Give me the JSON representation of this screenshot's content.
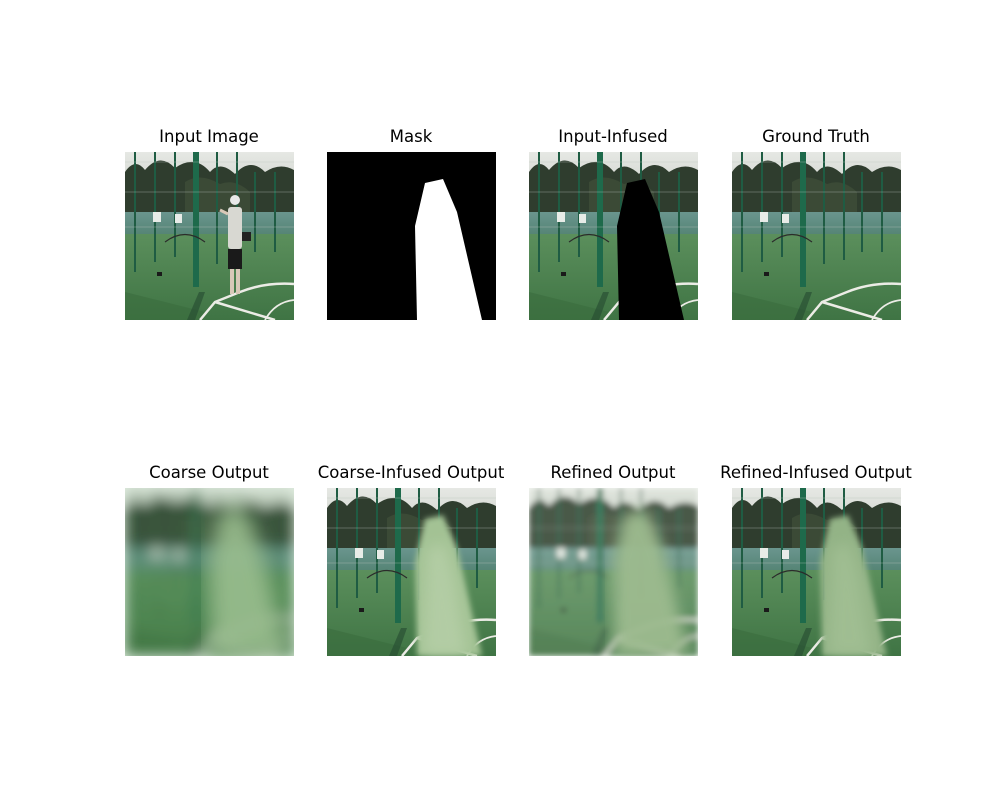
{
  "figure": {
    "panels": [
      {
        "id": "input-image",
        "title": "Input Image"
      },
      {
        "id": "mask",
        "title": "Mask"
      },
      {
        "id": "input-infused",
        "title": "Input-Infused"
      },
      {
        "id": "ground-truth",
        "title": "Ground Truth"
      },
      {
        "id": "coarse-output",
        "title": "Coarse Output"
      },
      {
        "id": "coarse-infused-output",
        "title": "Coarse-Infused Output"
      },
      {
        "id": "refined-output",
        "title": "Refined Output"
      },
      {
        "id": "refined-infused-output",
        "title": "Refined-Infused Output"
      }
    ],
    "colors": {
      "background": "#ffffff",
      "mask_fg": "#ffffff",
      "mask_bg": "#000000",
      "grass": "#4a7f4e",
      "fence_pole": "#1f5c43",
      "sky": "#d9dcd8",
      "trees": "#2e3b2c",
      "court_line": "#e8e8e2",
      "blur_fill": "#9dbf8d"
    }
  }
}
